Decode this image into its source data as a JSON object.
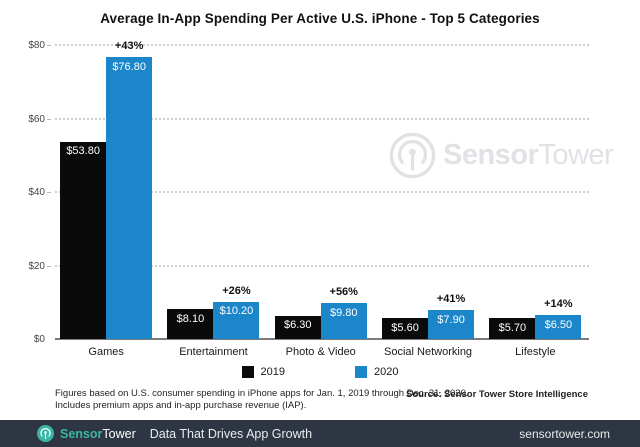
{
  "chart_data": {
    "type": "bar",
    "title": "Average In-App Spending Per Active U.S. iPhone - Top 5 Categories",
    "categories": [
      "Games",
      "Entertainment",
      "Photo & Video",
      "Social Networking",
      "Lifestyle"
    ],
    "series": [
      {
        "name": "2019",
        "color": "#0a0a0a",
        "values": [
          53.8,
          8.1,
          6.3,
          5.6,
          5.7
        ],
        "labels": [
          "$53.80",
          "$8.10",
          "$6.30",
          "$5.60",
          "$5.70"
        ]
      },
      {
        "name": "2020",
        "color": "#1b86c9",
        "values": [
          76.8,
          10.2,
          9.8,
          7.9,
          6.5
        ],
        "labels": [
          "$76.80",
          "$10.20",
          "$9.80",
          "$7.90",
          "$6.50"
        ]
      }
    ],
    "pct_change": [
      "+43%",
      "+26%",
      "+56%",
      "+41%",
      "+14%"
    ],
    "ylim": [
      0,
      80
    ],
    "yticks": [
      {
        "value": 0,
        "label": "$0"
      },
      {
        "value": 20,
        "label": "$20"
      },
      {
        "value": 40,
        "label": "$40"
      },
      {
        "value": 60,
        "label": "$60"
      },
      {
        "value": 80,
        "label": "$80"
      }
    ],
    "grid": "horizontal-dotted",
    "legend_position": "bottom-center"
  },
  "watermark": {
    "text_bold": "Sensor",
    "text_light": "Tower",
    "color": "#e2e2e6"
  },
  "footnote": {
    "line1": "Figures based on U.S. consumer spending in iPhone apps for Jan. 1, 2019 through Dec. 31, 2020.",
    "line2": "Includes premium apps and in-app purchase revenue (IAP).",
    "source": "Source: Sensor Tower Store Intelligence"
  },
  "footer": {
    "brand_bold": "Sensor",
    "brand_light": "Tower",
    "tagline": "Data That Drives App Growth",
    "url": "sensortower.com",
    "bg_color": "#2d3642",
    "accent_color": "#3ab5a6"
  }
}
